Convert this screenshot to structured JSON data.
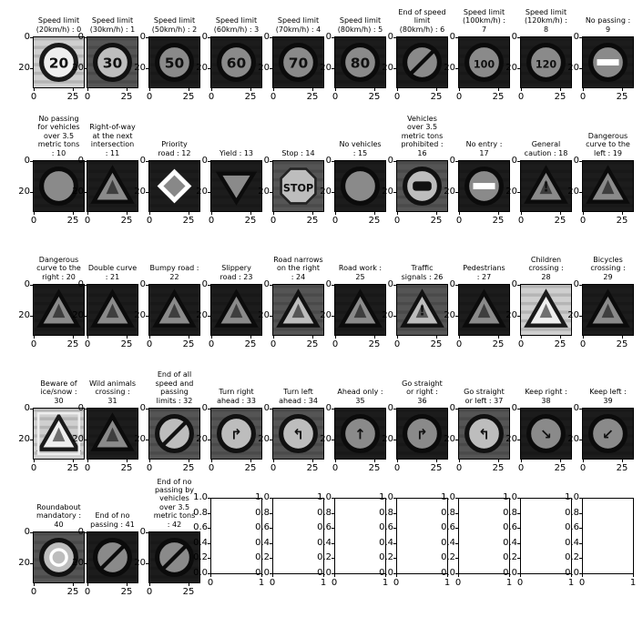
{
  "chart_data": {
    "type": "image-grid",
    "rows": 5,
    "cols": 10,
    "image_axis": {
      "xticks": [
        "0",
        "25"
      ],
      "yticks": [
        "0",
        "20"
      ]
    },
    "empty_axis": {
      "xticks": [
        "0",
        "1"
      ],
      "yticks": [
        "0.0",
        "0.2",
        "0.4",
        "0.6",
        "0.8",
        "1.0"
      ]
    },
    "panels": [
      {
        "title": "Speed limit\n(20km/h) : 0",
        "shape": "circle",
        "glyph": "20",
        "tone": "light"
      },
      {
        "title": "Speed limit\n(30km/h) : 1",
        "shape": "circle",
        "glyph": "30",
        "tone": "mid"
      },
      {
        "title": "Speed limit\n(50km/h) : 2",
        "shape": "circle",
        "glyph": "50",
        "tone": "dark"
      },
      {
        "title": "Speed limit\n(60km/h) : 3",
        "shape": "circle",
        "glyph": "60",
        "tone": "dark"
      },
      {
        "title": "Speed limit\n(70km/h) : 4",
        "shape": "circle",
        "glyph": "70",
        "tone": "dark"
      },
      {
        "title": "Speed limit\n(80km/h) : 5",
        "shape": "circle",
        "glyph": "80",
        "tone": "dark"
      },
      {
        "title": "End of speed\nlimit\n(80km/h) : 6",
        "shape": "circle-slash",
        "glyph": "",
        "tone": "dark"
      },
      {
        "title": "Speed limit\n(100km/h) :\n7",
        "shape": "circle",
        "glyph": "100",
        "tone": "dark"
      },
      {
        "title": "Speed limit\n(120km/h) :\n8",
        "shape": "circle",
        "glyph": "120",
        "tone": "dark"
      },
      {
        "title": "No passing :\n9",
        "shape": "circle-bar",
        "glyph": "",
        "tone": "dark"
      },
      {
        "title": "No passing\nfor vehicles\nover 3.5\nmetric tons\n: 10",
        "shape": "circle",
        "glyph": "",
        "tone": "dark"
      },
      {
        "title": "Right-of-way\nat the next\nintersection\n: 11",
        "shape": "triangle",
        "glyph": "",
        "tone": "dark"
      },
      {
        "title": "Priority\nroad : 12",
        "shape": "diamond",
        "glyph": "",
        "tone": "dark"
      },
      {
        "title": "Yield : 13",
        "shape": "inv-triangle",
        "glyph": "",
        "tone": "dark"
      },
      {
        "title": "Stop : 14",
        "shape": "octagon",
        "glyph": "STOP",
        "tone": "mid"
      },
      {
        "title": "No vehicles\n: 15",
        "shape": "circle",
        "glyph": "",
        "tone": "dark"
      },
      {
        "title": "Vehicles\nover 3.5\nmetric tons\nprohibited :\n16",
        "shape": "circle-truck",
        "glyph": "",
        "tone": "mid"
      },
      {
        "title": "No entry :\n17",
        "shape": "circle-bar",
        "glyph": "",
        "tone": "dark"
      },
      {
        "title": "General\ncaution : 18",
        "shape": "triangle",
        "glyph": "!",
        "tone": "dark"
      },
      {
        "title": "Dangerous\ncurve to the\nleft : 19",
        "shape": "triangle",
        "glyph": "",
        "tone": "dark"
      },
      {
        "title": "Dangerous\ncurve to the\nright : 20",
        "shape": "triangle",
        "glyph": "",
        "tone": "dark"
      },
      {
        "title": "Double curve\n: 21",
        "shape": "triangle",
        "glyph": "",
        "tone": "dark"
      },
      {
        "title": "Bumpy road :\n22",
        "shape": "triangle",
        "glyph": "",
        "tone": "dark"
      },
      {
        "title": "Slippery\nroad : 23",
        "shape": "triangle",
        "glyph": "",
        "tone": "dark"
      },
      {
        "title": "Road narrows\non the right\n: 24",
        "shape": "triangle",
        "glyph": "",
        "tone": "mid"
      },
      {
        "title": "Road work :\n25",
        "shape": "triangle",
        "glyph": "",
        "tone": "dark"
      },
      {
        "title": "Traffic\nsignals : 26",
        "shape": "triangle",
        "glyph": "!",
        "tone": "mid"
      },
      {
        "title": "Pedestrians\n: 27",
        "shape": "triangle",
        "glyph": "",
        "tone": "dark"
      },
      {
        "title": "Children\ncrossing :\n28",
        "shape": "triangle",
        "glyph": "",
        "tone": "light"
      },
      {
        "title": "Bicycles\ncrossing :\n29",
        "shape": "triangle",
        "glyph": "",
        "tone": "dark"
      },
      {
        "title": "Beware of\nice/snow :\n30",
        "shape": "triangle-square",
        "glyph": "",
        "tone": "light"
      },
      {
        "title": "Wild animals\ncrossing :\n31",
        "shape": "triangle",
        "glyph": "",
        "tone": "dark"
      },
      {
        "title": "End of all\nspeed and\npassing\nlimits : 32",
        "shape": "circle-slash",
        "glyph": "",
        "tone": "mid"
      },
      {
        "title": "Turn right\nahead : 33",
        "shape": "circle-arrow",
        "glyph": "↱",
        "tone": "mid"
      },
      {
        "title": "Turn left\nahead : 34",
        "shape": "circle-arrow",
        "glyph": "↰",
        "tone": "mid"
      },
      {
        "title": "Ahead only :\n35",
        "shape": "circle-arrow",
        "glyph": "↑",
        "tone": "dark"
      },
      {
        "title": "Go straight\nor right :\n36",
        "shape": "circle-arrow",
        "glyph": "↱",
        "tone": "dark"
      },
      {
        "title": "Go straight\nor left : 37",
        "shape": "circle-arrow",
        "glyph": "↰",
        "tone": "mid"
      },
      {
        "title": "Keep right :\n38",
        "shape": "circle-arrow",
        "glyph": "↘",
        "tone": "dark"
      },
      {
        "title": "Keep left :\n39",
        "shape": "circle-arrow",
        "glyph": "↙",
        "tone": "dark"
      },
      {
        "title": "Roundabout\nmandatory :\n40",
        "shape": "circle-round",
        "glyph": "",
        "tone": "mid"
      },
      {
        "title": "End of no\npassing : 41",
        "shape": "circle-slash",
        "glyph": "",
        "tone": "dark"
      },
      {
        "title": "End of no\npassing by\nvehicles\nover 3.5\nmetric tons\n: 42",
        "shape": "circle-slash",
        "glyph": "",
        "tone": "dark"
      },
      {
        "title": "",
        "shape": "empty"
      },
      {
        "title": "",
        "shape": "empty"
      },
      {
        "title": "",
        "shape": "empty"
      },
      {
        "title": "",
        "shape": "empty"
      },
      {
        "title": "",
        "shape": "empty"
      },
      {
        "title": "",
        "shape": "empty"
      },
      {
        "title": "",
        "shape": "empty"
      }
    ]
  }
}
